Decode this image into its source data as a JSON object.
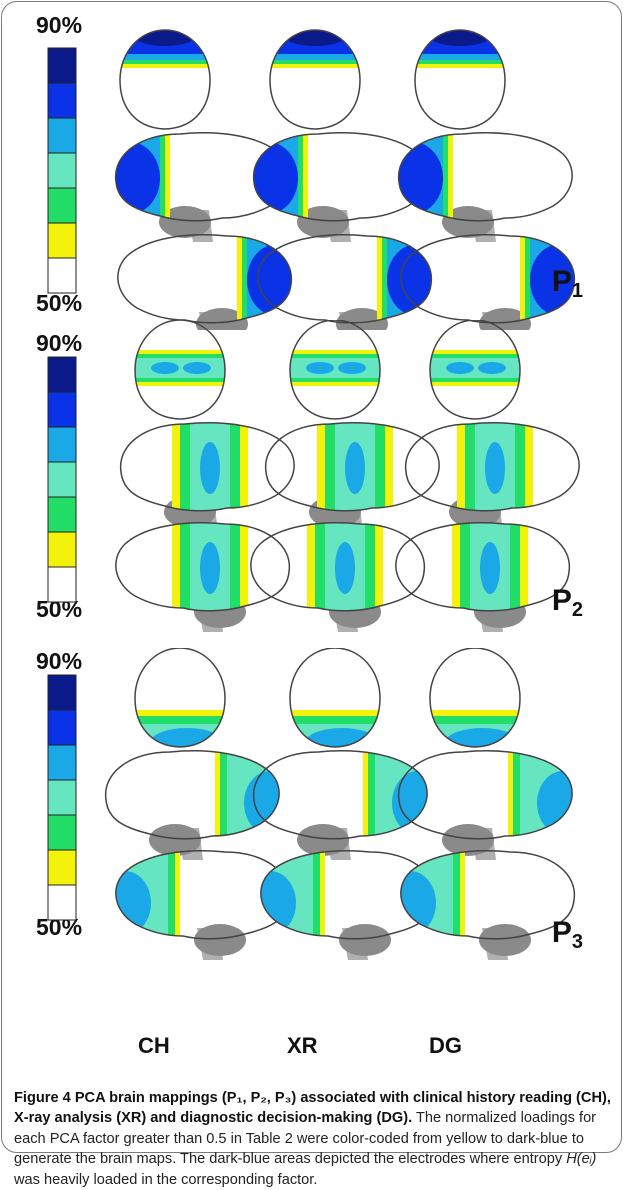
{
  "figure": {
    "scale": {
      "max_label": "90%",
      "min_label": "50%",
      "colors": [
        "#0a1a8a",
        "#0a32e6",
        "#1aa8e6",
        "#66e6c0",
        "#22dd66",
        "#f2f20a",
        "#ffffff"
      ]
    },
    "panels": [
      {
        "factor_main": "P",
        "factor_sub": "1"
      },
      {
        "factor_main": "P",
        "factor_sub": "2"
      },
      {
        "factor_main": "P",
        "factor_sub": "3"
      }
    ],
    "columns": [
      "CH",
      "XR",
      "DG"
    ],
    "brain_colors": {
      "outline": "#444444",
      "cerebellum": "#8a8a8a",
      "stem": "#b0b0b0"
    }
  },
  "caption": {
    "title": "Figure 4 PCA brain mappings (P₁, P₂, P₃) associated with clinical history reading (CH), X-ray analysis (XR) and diagnostic decision-making (DG).",
    "body_1": " The normalized loadings for each PCA factor greater than 0.5 in Table 2 were color-coded from yellow to dark-blue to generate the brain maps. The dark-blue areas depicted the electrodes where entropy ",
    "math": "H(eᵢ)",
    "body_2": " was heavily loaded in the corresponding factor."
  }
}
